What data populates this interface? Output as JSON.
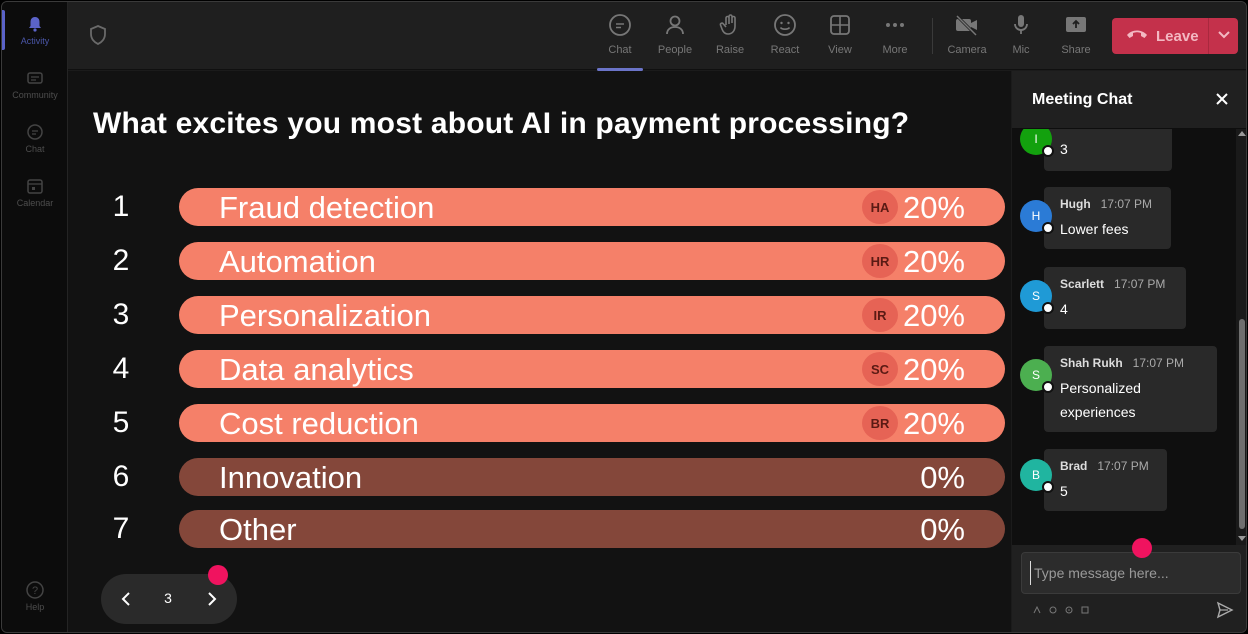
{
  "rail": {
    "items": [
      {
        "label": "Activity",
        "active": true
      },
      {
        "label": "Community",
        "active": false
      },
      {
        "label": "Chat",
        "active": false
      },
      {
        "label": "Calendar",
        "active": false
      }
    ],
    "help_label": "Help"
  },
  "toolbar": {
    "buttons": [
      {
        "label": "Chat",
        "icon": "chat-icon",
        "active": true
      },
      {
        "label": "People",
        "icon": "people-icon"
      },
      {
        "label": "Raise",
        "icon": "raise-hand-icon"
      },
      {
        "label": "React",
        "icon": "react-icon"
      },
      {
        "label": "View",
        "icon": "view-icon"
      },
      {
        "label": "More",
        "icon": "more-icon"
      },
      {
        "label": "Camera",
        "icon": "camera-off-icon"
      },
      {
        "label": "Mic",
        "icon": "mic-icon"
      },
      {
        "label": "Share",
        "icon": "share-icon"
      }
    ],
    "leave_label": "Leave",
    "leave_color": "#c4314b"
  },
  "poll": {
    "question": "What excites you most about AI in payment processing?",
    "options": [
      {
        "num": "1",
        "label": "Fraud detection",
        "avatar": "HA",
        "pct": "20%"
      },
      {
        "num": "2",
        "label": "Automation",
        "avatar": "HR",
        "pct": "20%"
      },
      {
        "num": "3",
        "label": "Personalization",
        "avatar": "IR",
        "pct": "20%"
      },
      {
        "num": "4",
        "label": "Data analytics",
        "avatar": "SC",
        "pct": "20%"
      },
      {
        "num": "5",
        "label": "Cost reduction",
        "avatar": "BR",
        "pct": "20%"
      },
      {
        "num": "6",
        "label": "Innovation",
        "avatar": "",
        "pct": "0%"
      },
      {
        "num": "7",
        "label": "Other",
        "avatar": "",
        "pct": "0%"
      }
    ],
    "bar_color": "#f58069",
    "empty_bar_color": "#84473a"
  },
  "pager": {
    "page": "3"
  },
  "chat": {
    "title": "Meeting Chat",
    "messages": [
      {
        "initial": "I",
        "name": "",
        "time": "",
        "text": "3",
        "color": "#13a10e"
      },
      {
        "initial": "H",
        "name": "Hugh",
        "time": "17:07 PM",
        "text": "Lower fees",
        "color": "#2b7bd6"
      },
      {
        "initial": "S",
        "name": "Scarlett",
        "time": "17:07 PM",
        "text": "4",
        "color": "#1f9ad6"
      },
      {
        "initial": "S",
        "name": "Shah Rukh",
        "time": "17:07 PM",
        "text": "Personalized experiences",
        "color": "#4caf50"
      },
      {
        "initial": "B",
        "name": "Brad",
        "time": "17:07 PM",
        "text": "5",
        "color": "#20b5a0"
      }
    ],
    "compose_placeholder": "Type message here..."
  }
}
